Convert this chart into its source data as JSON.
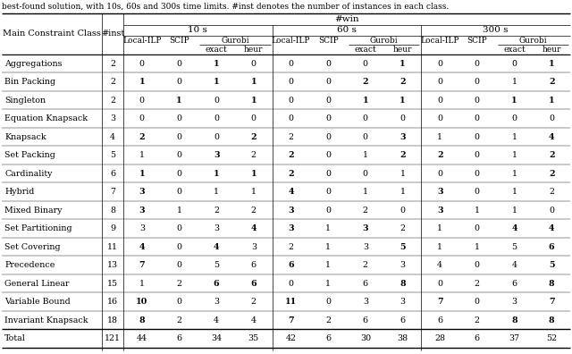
{
  "caption": "best-found solution, with 10s, 60s and 300s time limits. #inst denotes the number of instances in each class.",
  "rows": [
    {
      "name": "Aggregations",
      "inst": 2,
      "vals": [
        0,
        0,
        1,
        0,
        0,
        0,
        0,
        1,
        0,
        0,
        0,
        1
      ]
    },
    {
      "name": "Bin Packing",
      "inst": 2,
      "vals": [
        1,
        0,
        1,
        1,
        0,
        0,
        2,
        2,
        0,
        0,
        1,
        2
      ]
    },
    {
      "name": "Singleton",
      "inst": 2,
      "vals": [
        0,
        1,
        0,
        1,
        0,
        0,
        1,
        1,
        0,
        0,
        1,
        1
      ]
    },
    {
      "name": "Equation Knapsack",
      "inst": 3,
      "vals": [
        0,
        0,
        0,
        0,
        0,
        0,
        0,
        0,
        0,
        0,
        0,
        0
      ]
    },
    {
      "name": "Knapsack",
      "inst": 4,
      "vals": [
        2,
        0,
        0,
        2,
        2,
        0,
        0,
        3,
        1,
        0,
        1,
        4
      ]
    },
    {
      "name": "Set Packing",
      "inst": 5,
      "vals": [
        1,
        0,
        3,
        2,
        2,
        0,
        1,
        2,
        2,
        0,
        1,
        2
      ]
    },
    {
      "name": "Cardinality",
      "inst": 6,
      "vals": [
        1,
        0,
        1,
        1,
        2,
        0,
        0,
        1,
        0,
        0,
        1,
        2
      ]
    },
    {
      "name": "Hybrid",
      "inst": 7,
      "vals": [
        3,
        0,
        1,
        1,
        4,
        0,
        1,
        1,
        3,
        0,
        1,
        2
      ]
    },
    {
      "name": "Mixed Binary",
      "inst": 8,
      "vals": [
        3,
        1,
        2,
        2,
        3,
        0,
        2,
        0,
        3,
        1,
        1,
        0
      ]
    },
    {
      "name": "Set Partitioning",
      "inst": 9,
      "vals": [
        3,
        0,
        3,
        4,
        3,
        1,
        3,
        2,
        1,
        0,
        4,
        4
      ]
    },
    {
      "name": "Set Covering",
      "inst": 11,
      "vals": [
        4,
        0,
        4,
        3,
        2,
        1,
        3,
        5,
        1,
        1,
        5,
        6
      ]
    },
    {
      "name": "Precedence",
      "inst": 13,
      "vals": [
        7,
        0,
        5,
        6,
        6,
        1,
        2,
        3,
        4,
        0,
        4,
        5
      ]
    },
    {
      "name": "General Linear",
      "inst": 15,
      "vals": [
        1,
        2,
        6,
        6,
        0,
        1,
        6,
        8,
        0,
        2,
        6,
        8
      ]
    },
    {
      "name": "Variable Bound",
      "inst": 16,
      "vals": [
        10,
        0,
        3,
        2,
        11,
        0,
        3,
        3,
        7,
        0,
        3,
        7
      ]
    },
    {
      "name": "Invariant Knapsack",
      "inst": 18,
      "vals": [
        8,
        2,
        4,
        4,
        7,
        2,
        6,
        6,
        6,
        2,
        8,
        8
      ]
    }
  ],
  "total": {
    "name": "Total",
    "inst": 121,
    "vals": [
      44,
      6,
      34,
      35,
      42,
      6,
      30,
      38,
      28,
      6,
      37,
      52
    ]
  }
}
